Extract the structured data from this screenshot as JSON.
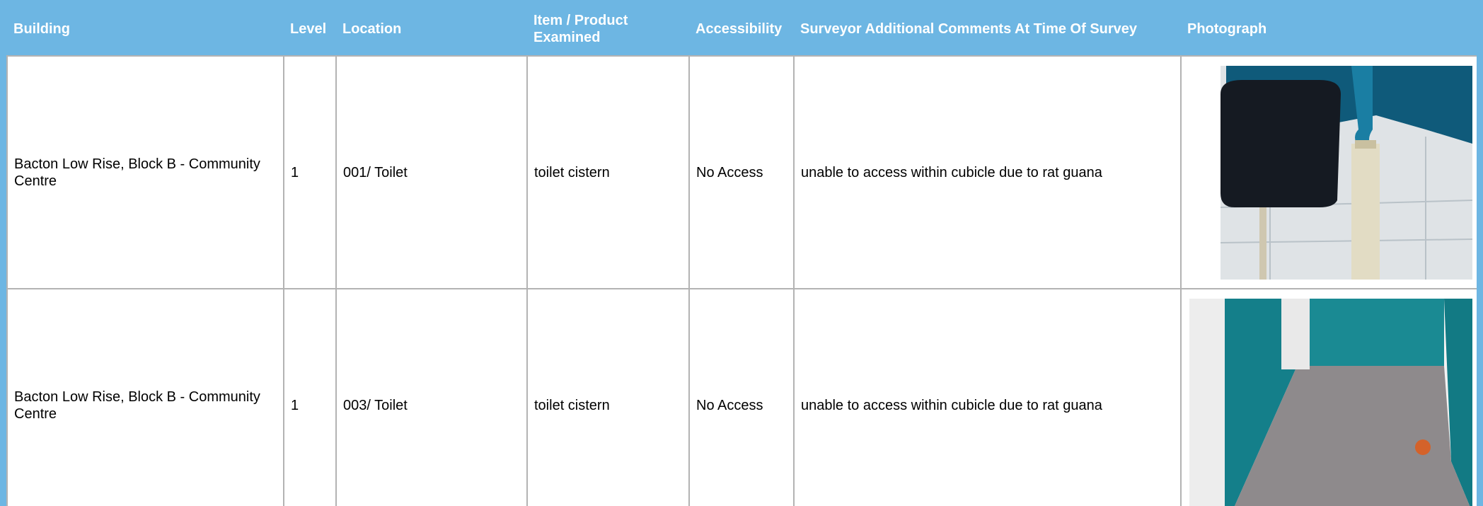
{
  "table": {
    "headers": [
      "Building",
      "Level",
      "Location",
      "Item / Product Examined",
      "Accessibility",
      "Surveyor Additional Comments At Time Of Survey",
      "Photograph"
    ],
    "rows": [
      [
        "Bacton Low Rise, Block B - Community Centre",
        "1",
        "001/ Toilet",
        "toilet cistern",
        "No Access",
        "unable to access within cubicle due to rat guana"
      ],
      [
        "Bacton Low Rise, Block B - Community Centre",
        "1",
        "003/ Toilet",
        "toilet cistern",
        "No Access",
        "unable to access within cubicle due to rat guana"
      ]
    ]
  }
}
